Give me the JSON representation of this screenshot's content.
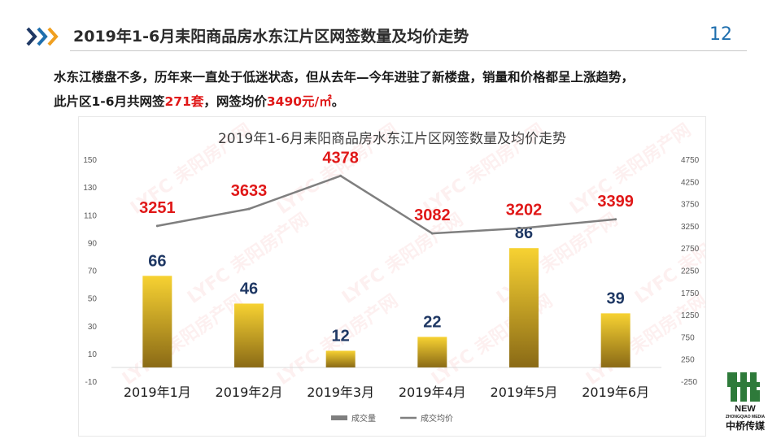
{
  "header": {
    "title": "2019年1-6月耒阳商品房水东江片区网签数量及均价走势",
    "page_number": "12"
  },
  "description": {
    "line1": "水东江楼盘不多，历年来一直处于低迷状态，但从去年—今年进驻了新楼盘，销量和价格都呈上涨趋势，",
    "line2_prefix": "此片区1-6月共网签",
    "line2_units": "271套",
    "line2_mid": "，网签均价",
    "line2_price": "3490元/㎡",
    "line2_suffix": "。"
  },
  "colors": {
    "bar_top": "#f7d232",
    "bar_bottom": "#8a6a16",
    "line": "#7f7f7f",
    "price_label": "#e01818",
    "count_label": "#1f3864",
    "accent_blue": "#1f6fae"
  },
  "watermark_text": "LYFC 耒阳房产网",
  "logo": {
    "line1": "NEW",
    "line2": "ZHONGQIAO MEDIA",
    "line3": "中桥传媒"
  },
  "chart_data": {
    "type": "bar+line",
    "title": "2019年1-6月耒阳商品房水东江片区网签数量及均价走势",
    "categories": [
      "2019年1月",
      "2019年2月",
      "2019年3月",
      "2019年4月",
      "2019年5月",
      "2019年6月"
    ],
    "series": [
      {
        "name": "成交量",
        "type": "bar",
        "axis": "left",
        "values": [
          66,
          46,
          12,
          22,
          86,
          39
        ]
      },
      {
        "name": "成交均价",
        "type": "line",
        "axis": "right",
        "values": [
          3251,
          3633,
          4378,
          3082,
          3202,
          3399
        ]
      }
    ],
    "y_left": {
      "min": -10,
      "max": 150,
      "ticks": [
        -10,
        10,
        30,
        50,
        70,
        90,
        110,
        130,
        150
      ]
    },
    "y_right": {
      "min": -250,
      "max": 4750,
      "ticks": [
        -250,
        250,
        750,
        1250,
        1750,
        2250,
        2750,
        3250,
        3750,
        4250,
        4750
      ]
    },
    "legend_position": "bottom",
    "grid": false
  }
}
